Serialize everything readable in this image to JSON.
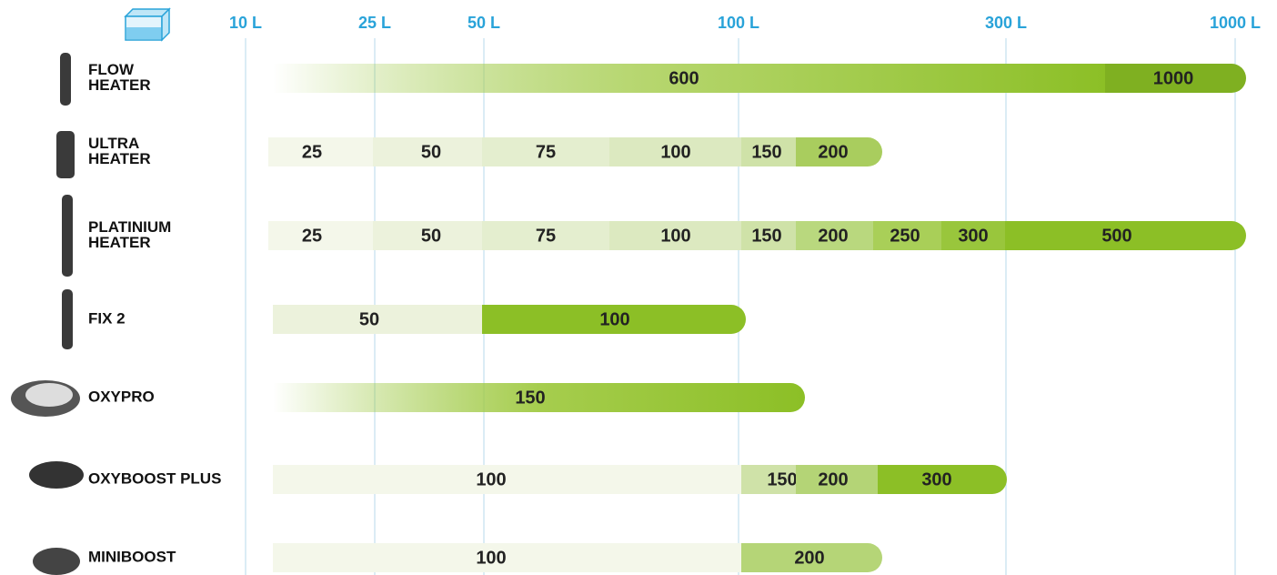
{
  "axis": {
    "labels": [
      "10 L",
      "25 L",
      "50 L",
      "100 L",
      "300 L",
      "1000 L"
    ]
  },
  "rows": [
    {
      "name": [
        "FLOW",
        "HEATER"
      ],
      "segments": [
        600,
        1000
      ]
    },
    {
      "name": [
        "ULTRA",
        "HEATER"
      ],
      "segments": [
        25,
        50,
        75,
        100,
        150,
        200
      ]
    },
    {
      "name": [
        "PLATINIUM",
        "HEATER"
      ],
      "segments": [
        25,
        50,
        75,
        100,
        150,
        200,
        250,
        300,
        500
      ]
    },
    {
      "name": [
        "FIX 2"
      ],
      "segments": [
        50,
        100
      ]
    },
    {
      "name": [
        "OXYPRO"
      ],
      "segments": [
        150
      ]
    },
    {
      "name": [
        "OXYBOOST PLUS"
      ],
      "segments": [
        100,
        150,
        200,
        300
      ]
    },
    {
      "name": [
        "MINIBOOST"
      ],
      "segments": [
        100,
        200
      ]
    }
  ]
}
